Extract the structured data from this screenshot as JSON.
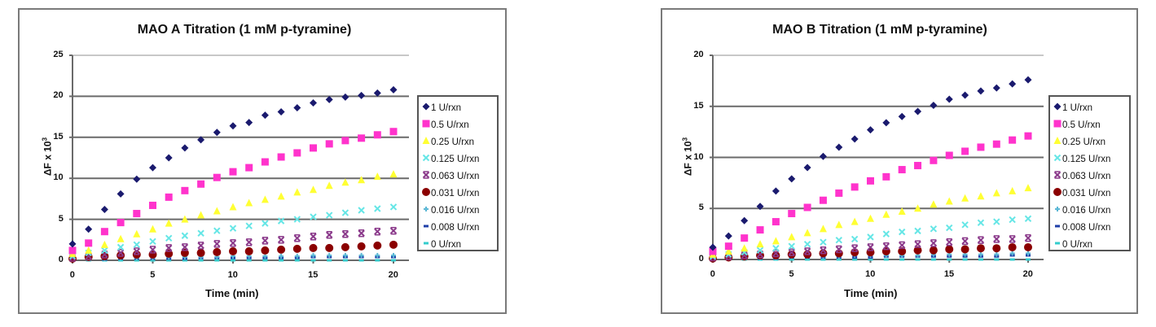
{
  "chart_data": [
    {
      "type": "scatter",
      "title": "MAO A Titration (1 mM p-tyramine)",
      "xlabel": "Time (min)",
      "ylabel": "ΔF x 10³",
      "xlim": [
        0,
        20
      ],
      "ylim": [
        0,
        25
      ],
      "xticks": [
        "0",
        "5",
        "10",
        "15",
        "20"
      ],
      "yticks": [
        "0",
        "5",
        "10",
        "15",
        "20",
        "25"
      ],
      "grid": "horizontal major gridlines",
      "legend_position": "right",
      "x": [
        0,
        1,
        2,
        3,
        4,
        5,
        6,
        7,
        8,
        9,
        10,
        11,
        12,
        13,
        14,
        15,
        16,
        17,
        18,
        19,
        20
      ],
      "series": [
        {
          "name": "1 U/rxn",
          "color": "#1a1a6e",
          "marker": "diamond",
          "values": [
            2.0,
            3.8,
            6.2,
            8.1,
            9.9,
            11.3,
            12.5,
            13.7,
            14.7,
            15.6,
            16.4,
            16.8,
            17.7,
            18.1,
            18.6,
            19.2,
            19.6,
            19.9,
            20.1,
            20.4,
            20.8
          ]
        },
        {
          "name": "0.5 U/rxn",
          "color": "#ff33cc",
          "marker": "square",
          "values": [
            1.2,
            2.1,
            3.5,
            4.6,
            5.7,
            6.7,
            7.7,
            8.5,
            9.3,
            10.1,
            10.8,
            11.3,
            12.0,
            12.6,
            13.1,
            13.7,
            14.2,
            14.6,
            14.9,
            15.3,
            15.7
          ]
        },
        {
          "name": "0.25 U/rxn",
          "color": "#ffff33",
          "marker": "triangle",
          "values": [
            0.8,
            1.2,
            1.9,
            2.6,
            3.2,
            3.8,
            4.5,
            5.0,
            5.5,
            6.0,
            6.5,
            7.0,
            7.4,
            7.8,
            8.3,
            8.6,
            9.1,
            9.5,
            9.8,
            10.2,
            10.5
          ]
        },
        {
          "name": "0.125 U/rxn",
          "color": "#66e6e6",
          "marker": "x",
          "values": [
            0.5,
            0.9,
            1.2,
            1.6,
            1.9,
            2.3,
            2.7,
            3.0,
            3.3,
            3.6,
            3.9,
            4.2,
            4.5,
            4.8,
            5.0,
            5.3,
            5.5,
            5.8,
            6.1,
            6.3,
            6.5
          ]
        },
        {
          "name": "0.063 U/rxn",
          "color": "#8b3a8b",
          "marker": "star",
          "values": [
            0.3,
            0.5,
            0.7,
            0.9,
            1.1,
            1.3,
            1.5,
            1.6,
            1.8,
            2.0,
            2.1,
            2.2,
            2.4,
            2.5,
            2.7,
            2.9,
            3.1,
            3.2,
            3.3,
            3.5,
            3.6
          ]
        },
        {
          "name": "0.031 U/rxn",
          "color": "#8b0000",
          "marker": "circle",
          "values": [
            0.2,
            0.4,
            0.5,
            0.6,
            0.7,
            0.7,
            0.8,
            0.9,
            0.9,
            1.0,
            1.1,
            1.1,
            1.2,
            1.3,
            1.4,
            1.5,
            1.5,
            1.6,
            1.7,
            1.8,
            1.9
          ]
        },
        {
          "name": "0.016 U/rxn",
          "color": "#5bb7d5",
          "marker": "plus",
          "values": [
            0.1,
            0.2,
            0.2,
            0.3,
            0.3,
            0.3,
            0.4,
            0.4,
            0.4,
            0.4,
            0.5,
            0.5,
            0.5,
            0.5,
            0.5,
            0.6,
            0.6,
            0.6,
            0.6,
            0.6,
            0.6
          ]
        },
        {
          "name": "0.008 U/rxn",
          "color": "#1f3fa8",
          "marker": "dash",
          "values": [
            0.1,
            0.1,
            0.1,
            0.2,
            0.2,
            0.2,
            0.2,
            0.2,
            0.3,
            0.3,
            0.3,
            0.3,
            0.3,
            0.3,
            0.3,
            0.4,
            0.4,
            0.4,
            0.4,
            0.4,
            0.4
          ]
        },
        {
          "name": "0 U/rxn",
          "color": "#33cccc",
          "marker": "dash",
          "values": [
            0.0,
            0.0,
            0.0,
            0.0,
            0.0,
            0.0,
            0.0,
            0.0,
            0.0,
            0.0,
            0.0,
            0.0,
            0.0,
            0.0,
            0.0,
            0.0,
            0.0,
            0.0,
            0.0,
            0.0,
            0.0
          ]
        }
      ]
    },
    {
      "type": "scatter",
      "title": "MAO B Titration (1 mM p-tyramine)",
      "xlabel": "Time (min)",
      "ylabel": "ΔF x 10³",
      "xlim": [
        0,
        20
      ],
      "ylim": [
        0,
        20
      ],
      "xticks": [
        "0",
        "5",
        "10",
        "15",
        "20"
      ],
      "yticks": [
        "0",
        "5",
        "10",
        "15",
        "20"
      ],
      "grid": "horizontal major gridlines",
      "legend_position": "right",
      "x": [
        0,
        1,
        2,
        3,
        4,
        5,
        6,
        7,
        8,
        9,
        10,
        11,
        12,
        13,
        14,
        15,
        16,
        17,
        18,
        19,
        20
      ],
      "series": [
        {
          "name": "1 U/rxn",
          "color": "#1a1a6e",
          "marker": "diamond",
          "values": [
            1.2,
            2.3,
            3.8,
            5.2,
            6.7,
            7.9,
            9.0,
            10.1,
            11.0,
            11.8,
            12.7,
            13.4,
            14.0,
            14.5,
            15.1,
            15.7,
            16.1,
            16.5,
            16.8,
            17.2,
            17.6
          ]
        },
        {
          "name": "0.5 U/rxn",
          "color": "#ff33cc",
          "marker": "square",
          "values": [
            0.8,
            1.3,
            2.1,
            2.9,
            3.7,
            4.5,
            5.1,
            5.8,
            6.5,
            7.1,
            7.7,
            8.1,
            8.8,
            9.2,
            9.7,
            10.2,
            10.6,
            11.0,
            11.3,
            11.7,
            12.1
          ]
        },
        {
          "name": "0.25 U/rxn",
          "color": "#ffff33",
          "marker": "triangle",
          "values": [
            0.5,
            0.8,
            1.1,
            1.5,
            1.8,
            2.2,
            2.6,
            3.0,
            3.4,
            3.7,
            4.0,
            4.4,
            4.7,
            5.0,
            5.4,
            5.7,
            6.0,
            6.2,
            6.5,
            6.7,
            7.0
          ]
        },
        {
          "name": "0.125 U/rxn",
          "color": "#66e6e6",
          "marker": "x",
          "values": [
            0.3,
            0.5,
            0.7,
            0.9,
            1.1,
            1.3,
            1.5,
            1.7,
            1.9,
            2.0,
            2.2,
            2.5,
            2.7,
            2.8,
            3.0,
            3.1,
            3.4,
            3.6,
            3.7,
            3.9,
            4.0
          ]
        },
        {
          "name": "0.063 U/rxn",
          "color": "#8b3a8b",
          "marker": "star",
          "values": [
            0.2,
            0.3,
            0.4,
            0.5,
            0.6,
            0.7,
            0.8,
            0.9,
            1.0,
            1.1,
            1.2,
            1.3,
            1.4,
            1.5,
            1.6,
            1.7,
            1.8,
            1.9,
            2.0,
            2.0,
            2.1
          ]
        },
        {
          "name": "0.031 U/rxn",
          "color": "#8b0000",
          "marker": "circle",
          "values": [
            0.1,
            0.2,
            0.3,
            0.4,
            0.4,
            0.5,
            0.5,
            0.6,
            0.6,
            0.7,
            0.7,
            0.8,
            0.8,
            0.9,
            0.9,
            1.0,
            1.0,
            1.1,
            1.1,
            1.2,
            1.2
          ]
        },
        {
          "name": "0.016 U/rxn",
          "color": "#5bb7d5",
          "marker": "plus",
          "values": [
            0.1,
            0.1,
            0.2,
            0.2,
            0.2,
            0.3,
            0.3,
            0.3,
            0.3,
            0.4,
            0.4,
            0.4,
            0.4,
            0.4,
            0.5,
            0.5,
            0.5,
            0.5,
            0.5,
            0.6,
            0.6
          ]
        },
        {
          "name": "0.008 U/rxn",
          "color": "#1f3fa8",
          "marker": "dash",
          "values": [
            0.0,
            0.1,
            0.1,
            0.1,
            0.1,
            0.2,
            0.2,
            0.2,
            0.2,
            0.2,
            0.2,
            0.3,
            0.3,
            0.3,
            0.3,
            0.3,
            0.3,
            0.3,
            0.3,
            0.4,
            0.4
          ]
        },
        {
          "name": "0 U/rxn",
          "color": "#33cccc",
          "marker": "dash",
          "values": [
            0.0,
            0.0,
            0.0,
            0.0,
            0.0,
            0.0,
            0.0,
            0.0,
            0.0,
            0.0,
            0.0,
            0.0,
            0.0,
            0.0,
            0.0,
            0.0,
            0.0,
            0.0,
            0.0,
            0.0,
            0.0
          ]
        }
      ]
    }
  ],
  "charts": [
    {
      "title": "MAO A Titration (1 mM p-tyramine)",
      "xlabel": "Time (min)",
      "ylabel_main": "ΔF x 10",
      "ylabel_sup": "3"
    },
    {
      "title": "MAO B Titration (1 mM p-tyramine)",
      "xlabel": "Time (min)",
      "ylabel_main": "ΔF x 10",
      "ylabel_sup": "3"
    }
  ]
}
